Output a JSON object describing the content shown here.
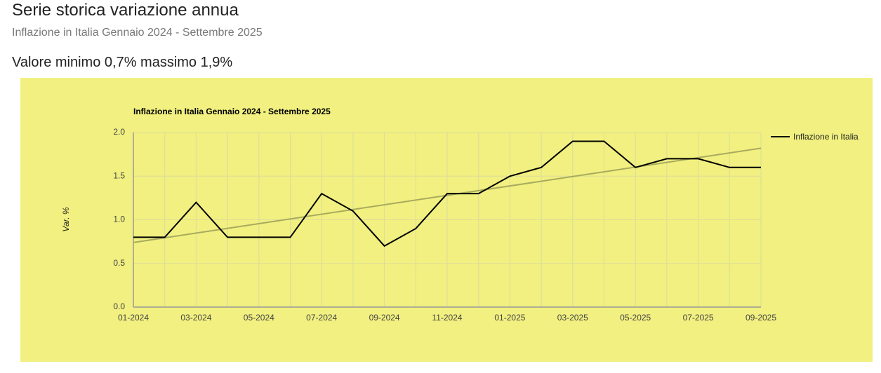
{
  "page": {
    "title": "Serie storica variazione annua",
    "subtitle": "Inflazione in Italia Gennaio 2024 - Settembre 2025",
    "summary": "Valore minimo 0,7% massimo 1,9%"
  },
  "chart_data": {
    "type": "line",
    "title": "Inflazione in Italia Gennaio 2024 - Settembre 2025",
    "y_label": "Var. %",
    "categories": [
      "01-2024",
      null,
      "03-2024",
      null,
      "05-2024",
      null,
      "07-2024",
      null,
      "09-2024",
      null,
      "11-2024",
      null,
      "01-2025",
      null,
      "03-2025",
      null,
      "05-2025",
      null,
      "07-2025",
      null,
      "09-2025"
    ],
    "series": [
      {
        "name": "Inflazione in Italia",
        "color": "#000000",
        "values": [
          0.8,
          0.8,
          1.2,
          0.8,
          0.8,
          0.8,
          1.3,
          1.1,
          0.7,
          0.9,
          1.3,
          1.3,
          1.5,
          1.6,
          1.9,
          1.9,
          1.6,
          1.7,
          1.7,
          1.6,
          1.6
        ]
      }
    ],
    "trendline": {
      "color": "#a8ab5e",
      "values": [
        0.74,
        1.82
      ]
    },
    "ylim": [
      0,
      2
    ],
    "yticks": [
      {
        "value": 0,
        "label": "0.0"
      },
      {
        "value": 0.5,
        "label": "0.5"
      },
      {
        "value": 1,
        "label": "1.0"
      },
      {
        "value": 1.5,
        "label": "1.5"
      },
      {
        "value": 2,
        "label": "2.0"
      }
    ],
    "grid": true,
    "legend": "right"
  }
}
